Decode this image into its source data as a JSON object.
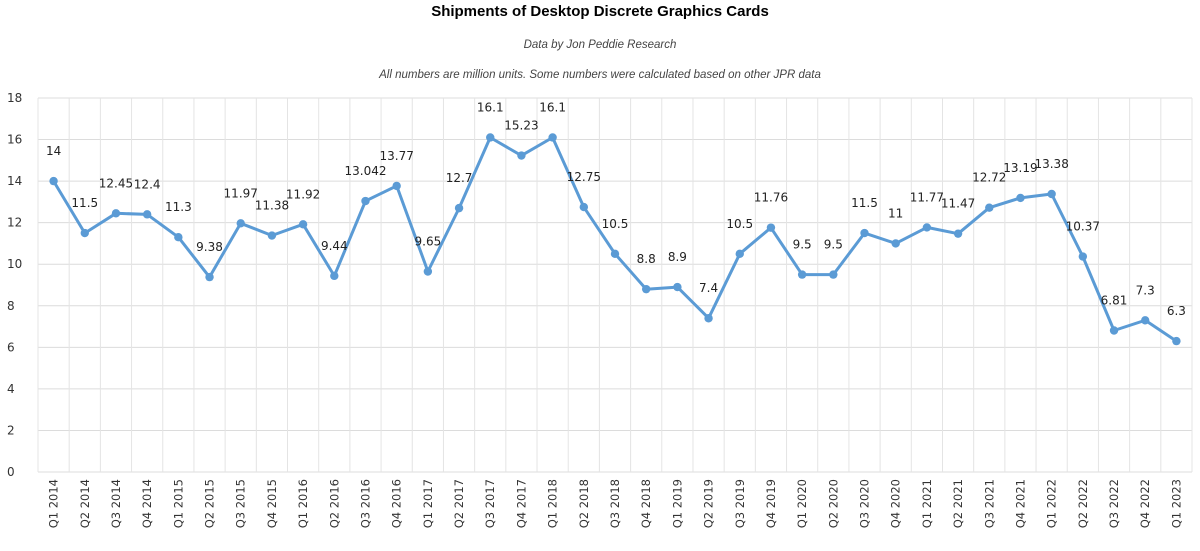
{
  "chart_data": {
    "type": "line",
    "title": "Shipments of Desktop Discrete Graphics Cards",
    "subtitle_1": "Data by Jon Peddie Research",
    "subtitle_2": "All numbers are million units. Some numbers were calculated based on other JPR data",
    "xlabel": "",
    "ylabel": "",
    "ylim": [
      0,
      18
    ],
    "yticks": [
      0,
      2,
      4,
      6,
      8,
      10,
      12,
      14,
      16,
      18
    ],
    "grid": true,
    "categories": [
      "Q1 2014",
      "Q2 2014",
      "Q3 2014",
      "Q4 2014",
      "Q1 2015",
      "Q2 2015",
      "Q3 2015",
      "Q4 2015",
      "Q1 2016",
      "Q2 2016",
      "Q3 2016",
      "Q4 2016",
      "Q1 2017",
      "Q2 2017",
      "Q3 2017",
      "Q4 2017",
      "Q1 2018",
      "Q2 2018",
      "Q3 2018",
      "Q4 2018",
      "Q1 2019",
      "Q2 2019",
      "Q3 2019",
      "Q4 2019",
      "Q1 2020",
      "Q2 2020",
      "Q3 2020",
      "Q4 2020",
      "Q1 2021",
      "Q2 2021",
      "Q3 2021",
      "Q4 2021",
      "Q1 2022",
      "Q2 2022",
      "Q3 2022",
      "Q4 2022",
      "Q1 2023"
    ],
    "series": [
      {
        "values": [
          14,
          11.5,
          12.45,
          12.4,
          11.3,
          9.38,
          11.97,
          11.38,
          11.92,
          9.44,
          13.042,
          13.77,
          9.65,
          12.7,
          16.1,
          15.23,
          16.1,
          12.75,
          10.5,
          8.8,
          8.9,
          7.4,
          10.5,
          11.76,
          9.5,
          9.5,
          11.5,
          11,
          11.77,
          11.47,
          12.72,
          13.19,
          13.38,
          10.37,
          6.81,
          7.3,
          6.3
        ],
        "labels": [
          "14",
          "11.5",
          "12.45",
          "12.4",
          "11.3",
          "9.38",
          "11.97",
          "11.38",
          "11.92",
          "9.44",
          "13.042",
          "13.77",
          "9.65",
          "12.7",
          "16.1",
          "15.23",
          "16.1",
          "12.75",
          "10.5",
          "8.8",
          "8.9",
          "7.4",
          "10.5",
          "11.76",
          "9.5",
          "9.5",
          "11.5",
          "11",
          "11.77",
          "11.47",
          "12.72",
          "13.19",
          "13.38",
          "10.37",
          "6.81",
          "7.3",
          "6.3"
        ],
        "color": "#5b9bd5"
      }
    ]
  }
}
